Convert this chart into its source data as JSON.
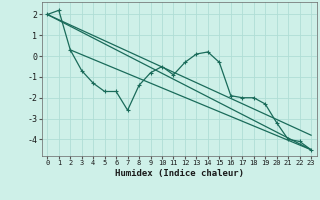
{
  "xlabel": "Humidex (Indice chaleur)",
  "bg_color": "#cef0e8",
  "grid_color": "#b0ddd5",
  "line_color": "#1a6b5a",
  "xlim": [
    -0.5,
    23.5
  ],
  "ylim": [
    -4.8,
    2.6
  ],
  "yticks": [
    -4,
    -3,
    -2,
    -1,
    0,
    1,
    2
  ],
  "xticks": [
    0,
    1,
    2,
    3,
    4,
    5,
    6,
    7,
    8,
    9,
    10,
    11,
    12,
    13,
    14,
    15,
    16,
    17,
    18,
    19,
    20,
    21,
    22,
    23
  ],
  "xtick_labels": [
    "0",
    "1",
    "2",
    "3",
    "4",
    "5",
    "6",
    "7",
    "8",
    "9",
    "10",
    "11",
    "12",
    "13",
    "14",
    "15",
    "16",
    "17",
    "18",
    "19",
    "20",
    "21",
    "22",
    "23"
  ],
  "series1_x": [
    0,
    1,
    2,
    3,
    4,
    5,
    6,
    7,
    8,
    9,
    10,
    11,
    12,
    13,
    14,
    15,
    16,
    17,
    18,
    19,
    20,
    21,
    22,
    23
  ],
  "series1_y": [
    2.0,
    2.2,
    0.3,
    -0.7,
    -1.3,
    -1.7,
    -1.7,
    -2.6,
    -1.4,
    -0.8,
    -0.5,
    -0.9,
    -0.3,
    0.1,
    0.2,
    -0.3,
    -1.9,
    -2.0,
    -2.0,
    -2.3,
    -3.2,
    -4.0,
    -4.1,
    -4.5
  ],
  "series2_x": [
    0,
    23
  ],
  "series2_y": [
    2.0,
    -4.5
  ],
  "series3_x": [
    2,
    23
  ],
  "series3_y": [
    0.3,
    -4.5
  ],
  "series4_x": [
    0,
    23
  ],
  "series4_y": [
    2.0,
    -3.8
  ]
}
